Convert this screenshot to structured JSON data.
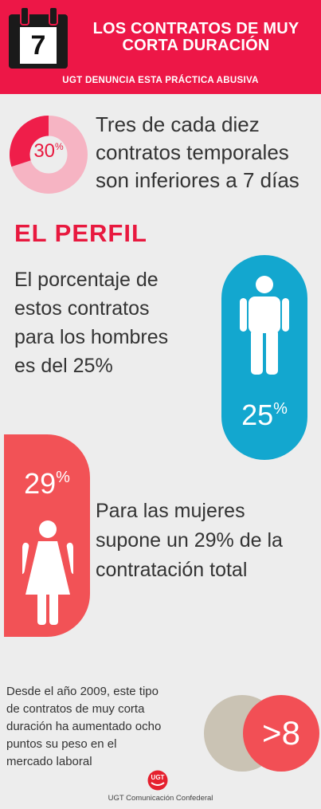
{
  "header": {
    "calendar_day": "7",
    "title_line1": "LOS CONTRATOS DE MUY",
    "title_line2": "CORTA DURACIÓN",
    "subtitle": "UGT DENUNCIA ESTA PRÁCTICA ABUSIVA",
    "bg_color": "#ed1747"
  },
  "stat_short": {
    "value": "30",
    "unit": "%",
    "fraction": 0.3,
    "text_line1": "Tres de cada diez",
    "text_line2": "contratos temporales",
    "text_line3": "son inferiores a 7 días"
  },
  "profile": {
    "heading": "EL PERFIL",
    "men": {
      "line1": "El porcentaje de",
      "line2": "estos contratos",
      "line3": "para los hombres",
      "line4": "es del 25%",
      "value": "25",
      "unit": "%",
      "color": "#13a7cf",
      "icon": "man-icon"
    },
    "women": {
      "value": "29",
      "unit": "%",
      "line1": "Para las mujeres",
      "line2": "supone un 29% de la",
      "line3": "contratación total",
      "color": "#f25256",
      "icon": "woman-icon"
    }
  },
  "growth": {
    "line1": "Desde el año 2009, este tipo",
    "line2": "de contratos de muy corta",
    "line3": "duración ha aumentado ocho",
    "line4": "puntos su peso en el",
    "line5": "mercado laboral",
    "value": ">8"
  },
  "footer": {
    "logo_text": "UGT",
    "credit": "UGT Comunicación Confederal"
  }
}
